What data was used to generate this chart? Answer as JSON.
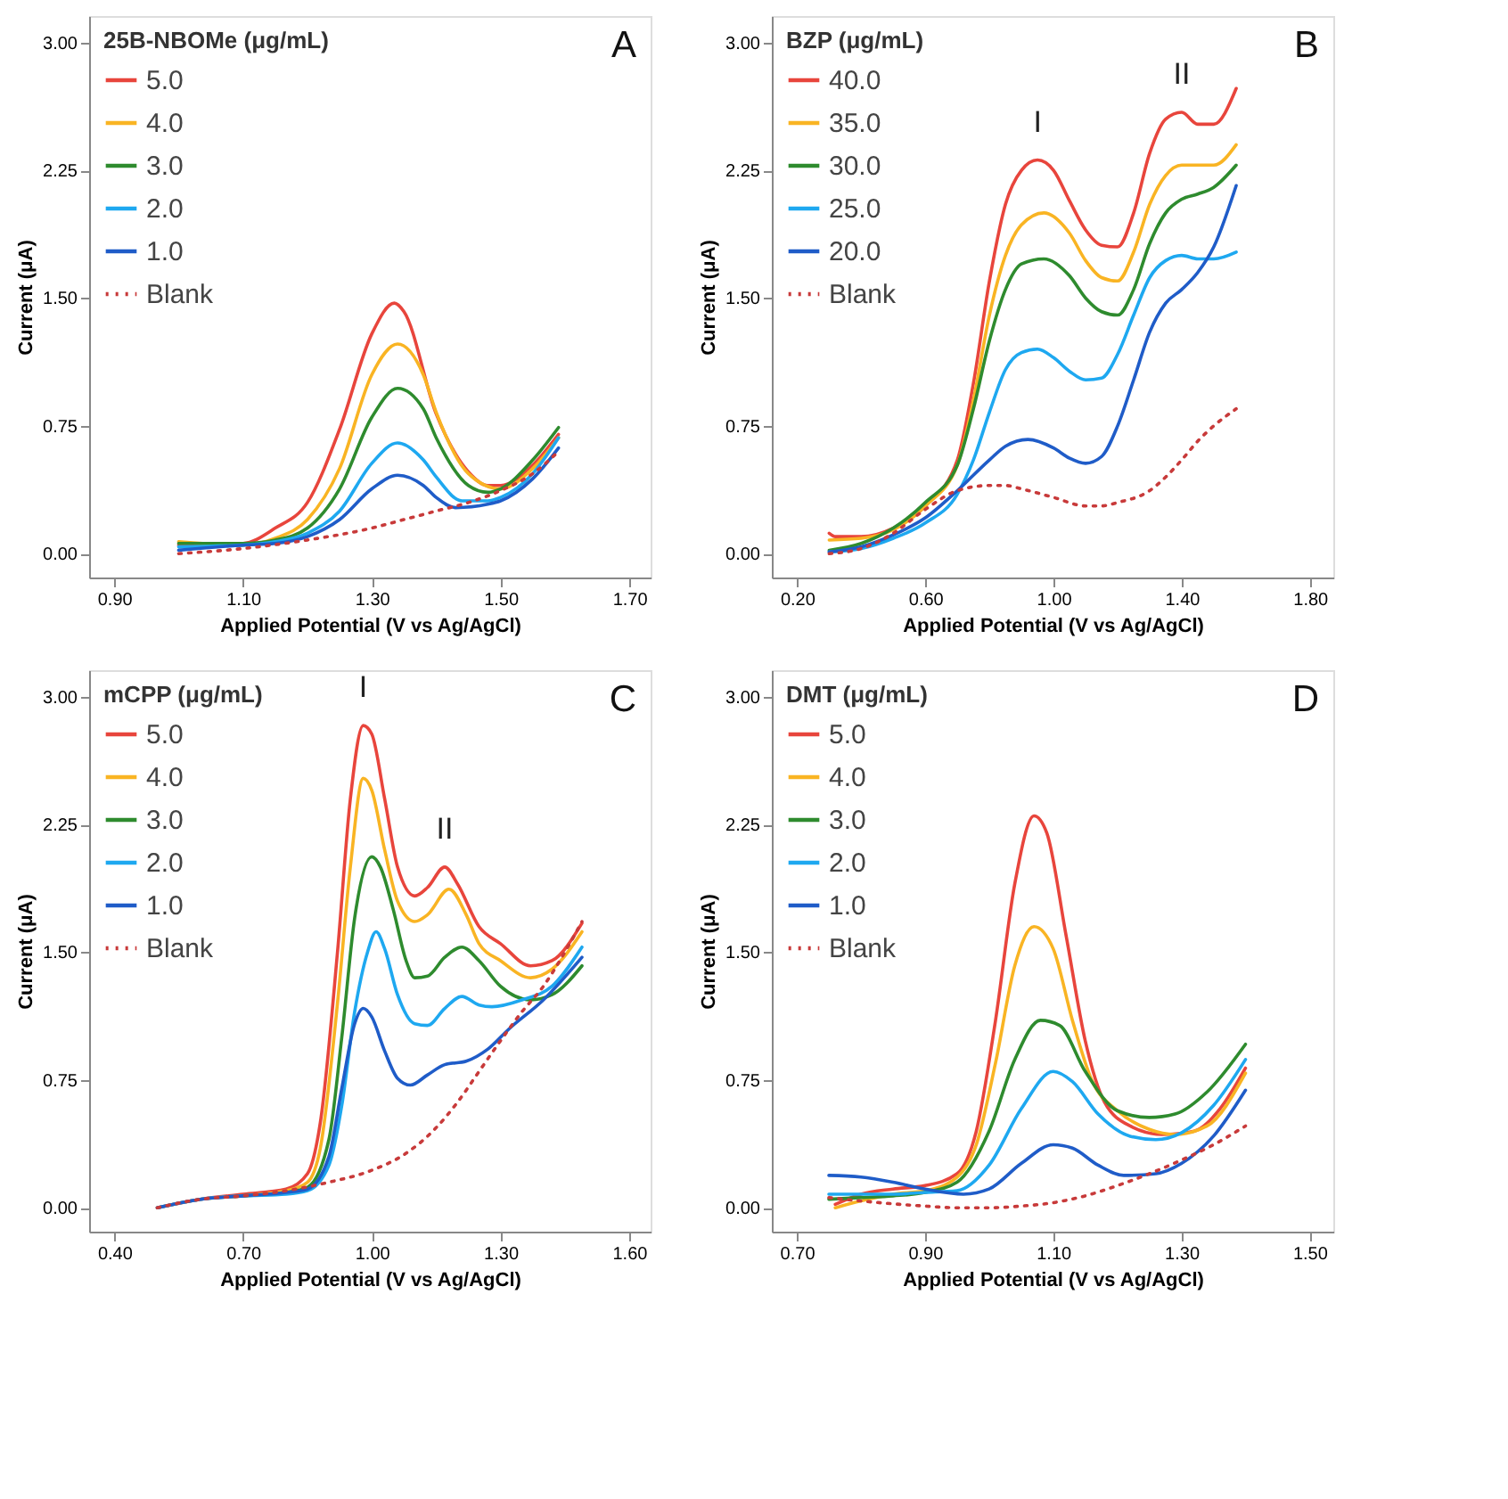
{
  "chart_data": [
    {
      "type": "line",
      "legend_title": "25B-NBOMe (μg/mL)",
      "legend": "top left",
      "xlabel": "Applied Potential (V vs Ag/AgCl)",
      "ylabel": "Current (μA)",
      "xlim": [
        0.861,
        1.733
      ],
      "ylim": [
        -0.14,
        3.155
      ],
      "xticks": [
        {
          "value": 0.9,
          "label": "0.90"
        },
        {
          "value": 1.1,
          "label": "1.10"
        },
        {
          "value": 1.3,
          "label": "1.30"
        },
        {
          "value": 1.5,
          "label": "1.50"
        },
        {
          "value": 1.7,
          "label": "1.70"
        }
      ],
      "yticks": [
        {
          "value": 0,
          "label": "0.00"
        },
        {
          "value": 0.75,
          "label": "0.75"
        },
        {
          "value": 1.5,
          "label": "1.50"
        },
        {
          "value": 2.25,
          "label": "2.25"
        },
        {
          "value": 3,
          "label": "3.00"
        }
      ],
      "annotations": [
        "A"
      ],
      "series": [
        {
          "name": "5.0",
          "color": "#e8453c",
          "x": [
            1.0,
            1.1,
            1.15,
            1.2,
            1.25,
            1.3,
            1.335,
            1.35,
            1.4,
            1.45,
            1.48,
            1.5,
            1.55,
            1.59
          ],
          "values": [
            0.05,
            0.06,
            0.15,
            0.3,
            0.73,
            1.29,
            1.47,
            1.42,
            0.82,
            0.48,
            0.4,
            0.4,
            0.52,
            0.7
          ]
        },
        {
          "name": "4.0",
          "color": "#f9b423",
          "x": [
            1.0,
            1.1,
            1.15,
            1.2,
            1.25,
            1.3,
            1.34,
            1.38,
            1.4,
            1.45,
            1.5,
            1.55,
            1.59
          ],
          "values": [
            0.07,
            0.05,
            0.09,
            0.2,
            0.5,
            1.05,
            1.23,
            1.05,
            0.83,
            0.47,
            0.38,
            0.5,
            0.68
          ]
        },
        {
          "name": "3.0",
          "color": "#2e8b2e",
          "x": [
            1.0,
            1.1,
            1.15,
            1.2,
            1.25,
            1.3,
            1.34,
            1.38,
            1.4,
            1.45,
            1.48,
            1.5,
            1.55,
            1.59
          ],
          "values": [
            0.06,
            0.06,
            0.08,
            0.15,
            0.38,
            0.8,
            0.97,
            0.85,
            0.68,
            0.4,
            0.36,
            0.38,
            0.55,
            0.74
          ]
        },
        {
          "name": "2.0",
          "color": "#1ea8f0",
          "x": [
            1.0,
            1.1,
            1.15,
            1.2,
            1.25,
            1.3,
            1.34,
            1.38,
            1.4,
            1.44,
            1.48,
            1.5,
            1.55,
            1.59
          ],
          "values": [
            0.04,
            0.05,
            0.07,
            0.12,
            0.25,
            0.53,
            0.65,
            0.55,
            0.45,
            0.31,
            0.31,
            0.33,
            0.47,
            0.68
          ]
        },
        {
          "name": "1.0",
          "color": "#1f5cc8",
          "x": [
            1.0,
            1.1,
            1.15,
            1.2,
            1.25,
            1.3,
            1.34,
            1.38,
            1.4,
            1.43,
            1.48,
            1.5,
            1.55,
            1.59
          ],
          "values": [
            0.02,
            0.05,
            0.06,
            0.1,
            0.2,
            0.38,
            0.46,
            0.4,
            0.33,
            0.27,
            0.29,
            0.31,
            0.44,
            0.62
          ]
        },
        {
          "name": "Blank",
          "color": "#c83a3a",
          "line_style": "dotted",
          "x": [
            1.0,
            1.1,
            1.2,
            1.3,
            1.35,
            1.4,
            1.45,
            1.5,
            1.55,
            1.59
          ],
          "values": [
            0.0,
            0.03,
            0.08,
            0.15,
            0.2,
            0.25,
            0.3,
            0.37,
            0.47,
            0.6
          ]
        }
      ]
    },
    {
      "type": "line",
      "legend_title": "BZP (μg/mL)",
      "legend": "top left",
      "xlabel": "Applied Potential (V vs Ag/AgCl)",
      "ylabel": "Current (μA)",
      "xlim": [
        0.121,
        1.873
      ],
      "ylim": [
        -0.14,
        3.155
      ],
      "xticks": [
        {
          "value": 0.2,
          "label": "0.20"
        },
        {
          "value": 0.6,
          "label": "0.60"
        },
        {
          "value": 1.0,
          "label": "1.00"
        },
        {
          "value": 1.4,
          "label": "1.40"
        },
        {
          "value": 1.8,
          "label": "1.80"
        }
      ],
      "yticks": [
        {
          "value": 0,
          "label": "0.00"
        },
        {
          "value": 0.75,
          "label": "0.75"
        },
        {
          "value": 1.5,
          "label": "1.50"
        },
        {
          "value": 2.25,
          "label": "2.25"
        },
        {
          "value": 3,
          "label": "3.00"
        }
      ],
      "annotations": [
        "B",
        {
          "text": "I",
          "x": 0.95,
          "y": 2.31
        },
        {
          "text": "II",
          "x": 1.4,
          "y": 2.59
        }
      ],
      "series": [
        {
          "name": "40.0",
          "color": "#e8453c",
          "x": [
            0.3,
            0.32,
            0.4,
            0.5,
            0.6,
            0.7,
            0.75,
            0.8,
            0.85,
            0.9,
            0.95,
            1.0,
            1.05,
            1.1,
            1.15,
            1.2,
            1.25,
            1.3,
            1.35,
            1.4,
            1.45,
            1.5,
            1.57
          ],
          "values": [
            0.12,
            0.1,
            0.1,
            0.15,
            0.28,
            0.55,
            1.0,
            1.6,
            2.05,
            2.25,
            2.31,
            2.25,
            2.07,
            1.9,
            1.81,
            1.8,
            2.0,
            2.35,
            2.55,
            2.59,
            2.52,
            2.52,
            2.73
          ]
        },
        {
          "name": "35.0",
          "color": "#f9b423",
          "x": [
            0.3,
            0.4,
            0.5,
            0.6,
            0.7,
            0.75,
            0.8,
            0.85,
            0.9,
            0.97,
            1.05,
            1.1,
            1.15,
            1.2,
            1.25,
            1.3,
            1.35,
            1.4,
            1.45,
            1.5,
            1.57
          ],
          "values": [
            0.08,
            0.09,
            0.14,
            0.28,
            0.52,
            0.9,
            1.4,
            1.75,
            1.93,
            2.0,
            1.88,
            1.72,
            1.62,
            1.6,
            1.77,
            2.05,
            2.22,
            2.28,
            2.28,
            2.28,
            2.4
          ]
        },
        {
          "name": "30.0",
          "color": "#2e8b2e",
          "x": [
            0.3,
            0.4,
            0.5,
            0.6,
            0.7,
            0.75,
            0.8,
            0.85,
            0.9,
            0.97,
            1.05,
            1.1,
            1.15,
            1.2,
            1.25,
            1.3,
            1.35,
            1.4,
            1.45,
            1.5,
            1.57
          ],
          "values": [
            0.02,
            0.06,
            0.15,
            0.3,
            0.52,
            0.85,
            1.25,
            1.55,
            1.7,
            1.73,
            1.63,
            1.5,
            1.42,
            1.4,
            1.55,
            1.82,
            2.0,
            2.08,
            2.11,
            2.15,
            2.28
          ]
        },
        {
          "name": "25.0",
          "color": "#1ea8f0",
          "x": [
            0.3,
            0.4,
            0.5,
            0.6,
            0.7,
            0.75,
            0.8,
            0.85,
            0.9,
            0.95,
            1.0,
            1.05,
            1.1,
            1.15,
            1.2,
            1.25,
            1.3,
            1.35,
            1.4,
            1.45,
            1.5,
            1.57
          ],
          "values": [
            0.01,
            0.03,
            0.09,
            0.18,
            0.35,
            0.55,
            0.83,
            1.08,
            1.18,
            1.2,
            1.15,
            1.07,
            1.02,
            1.03,
            1.17,
            1.4,
            1.62,
            1.72,
            1.75,
            1.73,
            1.73,
            1.77
          ]
        },
        {
          "name": "20.0",
          "color": "#1f5cc8",
          "x": [
            0.3,
            0.4,
            0.5,
            0.6,
            0.7,
            0.8,
            0.85,
            0.92,
            1.0,
            1.05,
            1.1,
            1.15,
            1.2,
            1.25,
            1.3,
            1.35,
            1.4,
            1.45,
            1.5,
            1.57
          ],
          "values": [
            0.01,
            0.04,
            0.11,
            0.21,
            0.37,
            0.55,
            0.63,
            0.67,
            0.62,
            0.56,
            0.53,
            0.57,
            0.75,
            1.02,
            1.3,
            1.47,
            1.55,
            1.65,
            1.8,
            2.16
          ]
        },
        {
          "name": "Blank",
          "color": "#c83a3a",
          "line_style": "dotted",
          "x": [
            0.3,
            0.4,
            0.5,
            0.6,
            0.7,
            0.8,
            0.85,
            0.9,
            1.0,
            1.1,
            1.15,
            1.2,
            1.3,
            1.35,
            1.4,
            1.45,
            1.5,
            1.57
          ],
          "values": [
            0.0,
            0.03,
            0.12,
            0.26,
            0.37,
            0.4,
            0.4,
            0.38,
            0.33,
            0.28,
            0.28,
            0.3,
            0.37,
            0.45,
            0.55,
            0.66,
            0.75,
            0.85
          ]
        }
      ]
    },
    {
      "type": "line",
      "legend_title": "mCPP (μg/mL)",
      "legend": "top left",
      "xlabel": "Applied Potential (V vs Ag/AgCl)",
      "ylabel": "Current (μA)",
      "xlim": [
        0.341,
        1.65
      ],
      "ylim": [
        -0.14,
        3.155
      ],
      "xticks": [
        {
          "value": 0.4,
          "label": "0.40"
        },
        {
          "value": 0.7,
          "label": "0.70"
        },
        {
          "value": 1.0,
          "label": "1.00"
        },
        {
          "value": 1.3,
          "label": "1.30"
        },
        {
          "value": 1.6,
          "label": "1.60"
        }
      ],
      "yticks": [
        {
          "value": 0,
          "label": "0.00"
        },
        {
          "value": 0.75,
          "label": "0.75"
        },
        {
          "value": 1.5,
          "label": "1.50"
        },
        {
          "value": 2.25,
          "label": "2.25"
        },
        {
          "value": 3,
          "label": "3.00"
        }
      ],
      "annotations": [
        "C",
        {
          "text": "I",
          "x": 0.98,
          "y": 2.83
        },
        {
          "text": "II",
          "x": 1.17,
          "y": 2.0
        }
      ],
      "series": [
        {
          "name": "5.0",
          "color": "#e8453c",
          "x": [
            0.5,
            0.6,
            0.7,
            0.8,
            0.85,
            0.88,
            0.92,
            0.95,
            0.98,
            1.0,
            1.03,
            1.06,
            1.1,
            1.13,
            1.17,
            1.2,
            1.25,
            1.3,
            1.37,
            1.42,
            1.49
          ],
          "values": [
            0.0,
            0.05,
            0.08,
            0.11,
            0.2,
            0.5,
            1.5,
            2.4,
            2.83,
            2.78,
            2.4,
            2.0,
            1.83,
            1.88,
            2.0,
            1.9,
            1.65,
            1.55,
            1.42,
            1.45,
            1.67
          ]
        },
        {
          "name": "4.0",
          "color": "#f9b423",
          "x": [
            0.5,
            0.6,
            0.7,
            0.8,
            0.85,
            0.88,
            0.92,
            0.95,
            0.98,
            1.0,
            1.03,
            1.06,
            1.1,
            1.13,
            1.18,
            1.22,
            1.25,
            1.3,
            1.37,
            1.42,
            1.49
          ],
          "values": [
            0.0,
            0.05,
            0.07,
            0.1,
            0.15,
            0.35,
            1.2,
            2.0,
            2.52,
            2.45,
            2.1,
            1.8,
            1.68,
            1.72,
            1.87,
            1.72,
            1.55,
            1.45,
            1.35,
            1.4,
            1.62
          ]
        },
        {
          "name": "3.0",
          "color": "#2e8b2e",
          "x": [
            0.7,
            0.8,
            0.85,
            0.9,
            0.93,
            0.96,
            1.0,
            1.02,
            1.05,
            1.08,
            1.1,
            1.13,
            1.17,
            1.21,
            1.25,
            1.3,
            1.37,
            1.42,
            1.49
          ],
          "values": [
            0.07,
            0.09,
            0.12,
            0.4,
            1.0,
            1.7,
            2.06,
            2.0,
            1.75,
            1.45,
            1.35,
            1.36,
            1.47,
            1.53,
            1.45,
            1.3,
            1.22,
            1.25,
            1.42
          ]
        },
        {
          "name": "2.0",
          "color": "#1ea8f0",
          "x": [
            0.5,
            0.6,
            0.7,
            0.8,
            0.85,
            0.9,
            0.93,
            0.96,
            0.99,
            1.01,
            1.03,
            1.06,
            1.1,
            1.13,
            1.17,
            1.21,
            1.25,
            1.28,
            1.35,
            1.42,
            1.49
          ],
          "values": [
            0.0,
            0.05,
            0.07,
            0.08,
            0.1,
            0.25,
            0.6,
            1.15,
            1.5,
            1.62,
            1.52,
            1.25,
            1.08,
            1.07,
            1.17,
            1.24,
            1.19,
            1.18,
            1.22,
            1.3,
            1.53
          ]
        },
        {
          "name": "1.0",
          "color": "#1f5cc8",
          "x": [
            0.5,
            0.6,
            0.7,
            0.8,
            0.85,
            0.9,
            0.93,
            0.96,
            0.98,
            1.0,
            1.03,
            1.06,
            1.09,
            1.13,
            1.17,
            1.22,
            1.27,
            1.32,
            1.4,
            1.49
          ],
          "values": [
            0.0,
            0.05,
            0.07,
            0.09,
            0.11,
            0.3,
            0.7,
            1.08,
            1.17,
            1.12,
            0.92,
            0.76,
            0.72,
            0.78,
            0.84,
            0.86,
            0.93,
            1.05,
            1.22,
            1.47
          ]
        },
        {
          "name": "Blank",
          "color": "#c83a3a",
          "line_style": "dotted",
          "x": [
            0.5,
            0.6,
            0.7,
            0.8,
            0.9,
            1.0,
            1.08,
            1.15,
            1.2,
            1.25,
            1.3,
            1.35,
            1.4,
            1.45,
            1.49
          ],
          "values": [
            0.0,
            0.05,
            0.07,
            0.1,
            0.15,
            0.22,
            0.32,
            0.47,
            0.62,
            0.8,
            0.98,
            1.15,
            1.3,
            1.5,
            1.68
          ]
        }
      ]
    },
    {
      "type": "line",
      "legend_title": "DMT (μg/mL)",
      "legend": "top left",
      "xlabel": "Applied Potential (V vs Ag/AgCl)",
      "ylabel": "Current (μA)",
      "xlim": [
        0.661,
        1.537
      ],
      "ylim": [
        -0.14,
        3.155
      ],
      "xticks": [
        {
          "value": 0.7,
          "label": "0.70"
        },
        {
          "value": 0.9,
          "label": "0.90"
        },
        {
          "value": 1.1,
          "label": "1.10"
        },
        {
          "value": 1.3,
          "label": "1.30"
        },
        {
          "value": 1.5,
          "label": "1.50"
        }
      ],
      "yticks": [
        {
          "value": 0,
          "label": "0.00"
        },
        {
          "value": 0.75,
          "label": "0.75"
        },
        {
          "value": 1.5,
          "label": "1.50"
        },
        {
          "value": 2.25,
          "label": "2.25"
        },
        {
          "value": 3,
          "label": "3.00"
        }
      ],
      "annotations": [
        "D"
      ],
      "series": [
        {
          "name": "5.0",
          "color": "#e8453c",
          "x": [
            0.76,
            0.8,
            0.85,
            0.9,
            0.95,
            0.98,
            1.01,
            1.04,
            1.07,
            1.09,
            1.12,
            1.15,
            1.18,
            1.22,
            1.27,
            1.32,
            1.36,
            1.4
          ],
          "values": [
            0.02,
            0.08,
            0.11,
            0.13,
            0.2,
            0.45,
            1.1,
            1.9,
            2.3,
            2.2,
            1.6,
            0.98,
            0.62,
            0.48,
            0.43,
            0.45,
            0.58,
            0.82
          ]
        },
        {
          "name": "4.0",
          "color": "#f9b423",
          "x": [
            0.76,
            0.8,
            0.85,
            0.9,
            0.95,
            0.98,
            1.01,
            1.04,
            1.07,
            1.1,
            1.13,
            1.16,
            1.2,
            1.25,
            1.29,
            1.34,
            1.4
          ],
          "values": [
            0.0,
            0.04,
            0.08,
            0.1,
            0.18,
            0.37,
            0.85,
            1.42,
            1.65,
            1.52,
            1.1,
            0.75,
            0.57,
            0.46,
            0.43,
            0.48,
            0.79
          ]
        },
        {
          "name": "3.0",
          "color": "#2e8b2e",
          "x": [
            0.75,
            0.8,
            0.85,
            0.9,
            0.95,
            1.0,
            1.04,
            1.08,
            1.11,
            1.15,
            1.2,
            1.25,
            1.29,
            1.34,
            1.4
          ],
          "values": [
            0.05,
            0.06,
            0.07,
            0.09,
            0.15,
            0.45,
            0.87,
            1.1,
            1.07,
            0.8,
            0.57,
            0.53,
            0.55,
            0.68,
            0.96
          ]
        },
        {
          "name": "2.0",
          "color": "#1ea8f0",
          "x": [
            0.75,
            0.85,
            0.9,
            0.95,
            1.0,
            1.05,
            1.1,
            1.13,
            1.17,
            1.22,
            1.26,
            1.3,
            1.35,
            1.4
          ],
          "values": [
            0.08,
            0.08,
            0.09,
            0.1,
            0.25,
            0.58,
            0.8,
            0.74,
            0.55,
            0.42,
            0.4,
            0.44,
            0.6,
            0.87
          ]
        },
        {
          "name": "1.0",
          "color": "#1f5cc8",
          "x": [
            0.75,
            0.8,
            0.85,
            0.9,
            0.96,
            1.0,
            1.05,
            1.1,
            1.13,
            1.17,
            1.21,
            1.26,
            1.3,
            1.35,
            1.4
          ],
          "values": [
            0.19,
            0.18,
            0.15,
            0.11,
            0.08,
            0.11,
            0.26,
            0.37,
            0.35,
            0.25,
            0.19,
            0.2,
            0.26,
            0.42,
            0.69
          ]
        },
        {
          "name": "Blank",
          "color": "#c83a3a",
          "line_style": "dotted",
          "x": [
            0.75,
            0.8,
            0.9,
            0.95,
            1.0,
            1.05,
            1.1,
            1.15,
            1.2,
            1.25,
            1.3,
            1.35,
            1.4
          ],
          "values": [
            0.06,
            0.04,
            0.01,
            0.0,
            0.0,
            0.01,
            0.03,
            0.07,
            0.13,
            0.2,
            0.28,
            0.37,
            0.48
          ]
        }
      ]
    }
  ]
}
